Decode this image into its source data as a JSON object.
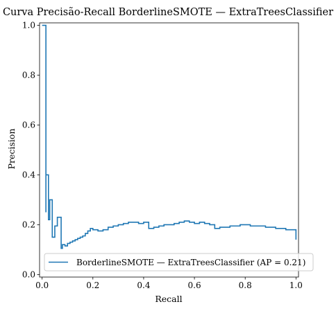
{
  "chart_data": {
    "type": "line",
    "step": "post",
    "title": "Curva Precisão-Recall BorderlineSMOTE — ExtraTreesClassifier",
    "xlabel": "Recall",
    "ylabel": "Precision",
    "xlim": [
      -0.01,
      1.01
    ],
    "ylim": [
      -0.01,
      1.01
    ],
    "xticks": [
      0.0,
      0.2,
      0.4,
      0.6,
      0.8,
      1.0
    ],
    "xtick_labels": [
      "0.0",
      "0.2",
      "0.4",
      "0.6",
      "0.8",
      "1.0"
    ],
    "yticks": [
      0.0,
      0.2,
      0.4,
      0.6,
      0.8,
      1.0
    ],
    "ytick_labels": [
      "0.0",
      "0.2",
      "0.4",
      "0.6",
      "0.8",
      "1.0"
    ],
    "grid": false,
    "legend": "lower-right",
    "series": [
      {
        "name": "BorderlineSMOTE — ExtraTreesClassifier (AP = 0.21)",
        "color": "#1f77b4",
        "points": [
          [
            1.0,
            0.14
          ],
          [
            1.0,
            0.18
          ],
          [
            0.96,
            0.18
          ],
          [
            0.96,
            0.185
          ],
          [
            0.92,
            0.185
          ],
          [
            0.92,
            0.19
          ],
          [
            0.88,
            0.19
          ],
          [
            0.88,
            0.195
          ],
          [
            0.82,
            0.195
          ],
          [
            0.82,
            0.2
          ],
          [
            0.78,
            0.2
          ],
          [
            0.78,
            0.195
          ],
          [
            0.74,
            0.195
          ],
          [
            0.74,
            0.19
          ],
          [
            0.7,
            0.19
          ],
          [
            0.7,
            0.185
          ],
          [
            0.68,
            0.185
          ],
          [
            0.68,
            0.2
          ],
          [
            0.66,
            0.2
          ],
          [
            0.66,
            0.205
          ],
          [
            0.64,
            0.205
          ],
          [
            0.64,
            0.21
          ],
          [
            0.62,
            0.21
          ],
          [
            0.62,
            0.205
          ],
          [
            0.6,
            0.205
          ],
          [
            0.6,
            0.21
          ],
          [
            0.58,
            0.21
          ],
          [
            0.58,
            0.215
          ],
          [
            0.56,
            0.215
          ],
          [
            0.56,
            0.21
          ],
          [
            0.54,
            0.21
          ],
          [
            0.54,
            0.205
          ],
          [
            0.52,
            0.205
          ],
          [
            0.52,
            0.2
          ],
          [
            0.48,
            0.2
          ],
          [
            0.48,
            0.195
          ],
          [
            0.46,
            0.195
          ],
          [
            0.46,
            0.19
          ],
          [
            0.44,
            0.19
          ],
          [
            0.44,
            0.185
          ],
          [
            0.42,
            0.185
          ],
          [
            0.42,
            0.21
          ],
          [
            0.4,
            0.21
          ],
          [
            0.4,
            0.205
          ],
          [
            0.38,
            0.205
          ],
          [
            0.38,
            0.21
          ],
          [
            0.34,
            0.21
          ],
          [
            0.34,
            0.205
          ],
          [
            0.32,
            0.205
          ],
          [
            0.32,
            0.2
          ],
          [
            0.3,
            0.2
          ],
          [
            0.3,
            0.195
          ],
          [
            0.28,
            0.195
          ],
          [
            0.28,
            0.19
          ],
          [
            0.26,
            0.19
          ],
          [
            0.26,
            0.18
          ],
          [
            0.24,
            0.18
          ],
          [
            0.24,
            0.175
          ],
          [
            0.22,
            0.175
          ],
          [
            0.22,
            0.18
          ],
          [
            0.2,
            0.18
          ],
          [
            0.2,
            0.185
          ],
          [
            0.19,
            0.185
          ],
          [
            0.19,
            0.175
          ],
          [
            0.18,
            0.175
          ],
          [
            0.18,
            0.165
          ],
          [
            0.17,
            0.165
          ],
          [
            0.17,
            0.155
          ],
          [
            0.16,
            0.155
          ],
          [
            0.16,
            0.15
          ],
          [
            0.15,
            0.15
          ],
          [
            0.15,
            0.145
          ],
          [
            0.14,
            0.145
          ],
          [
            0.14,
            0.14
          ],
          [
            0.13,
            0.14
          ],
          [
            0.13,
            0.135
          ],
          [
            0.12,
            0.135
          ],
          [
            0.12,
            0.13
          ],
          [
            0.11,
            0.13
          ],
          [
            0.11,
            0.125
          ],
          [
            0.1,
            0.125
          ],
          [
            0.1,
            0.115
          ],
          [
            0.09,
            0.115
          ],
          [
            0.09,
            0.12
          ],
          [
            0.08,
            0.12
          ],
          [
            0.08,
            0.105
          ],
          [
            0.075,
            0.105
          ],
          [
            0.075,
            0.23
          ],
          [
            0.06,
            0.23
          ],
          [
            0.06,
            0.195
          ],
          [
            0.05,
            0.195
          ],
          [
            0.05,
            0.15
          ],
          [
            0.04,
            0.15
          ],
          [
            0.04,
            0.3
          ],
          [
            0.03,
            0.3
          ],
          [
            0.03,
            0.22
          ],
          [
            0.025,
            0.22
          ],
          [
            0.025,
            0.4
          ],
          [
            0.015,
            0.4
          ],
          [
            0.015,
            0.25
          ],
          [
            0.015,
            1.0
          ],
          [
            0.0,
            1.0
          ]
        ]
      }
    ]
  }
}
